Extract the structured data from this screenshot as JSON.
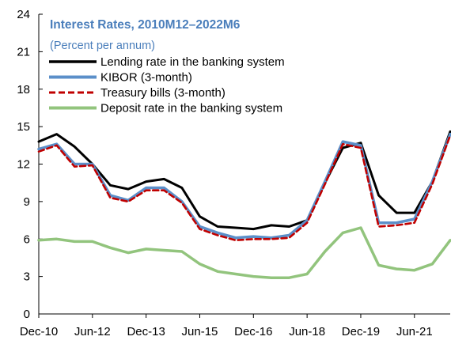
{
  "chart_data": {
    "type": "line",
    "title": "Interest Rates, 2010M12–2022M6",
    "subtitle": "(Percent per annum)",
    "xlabel": "",
    "ylabel": "",
    "x_start": "Dec-10",
    "x_end": "Jun-22",
    "ylim": [
      0,
      24
    ],
    "yticks": [
      0,
      3,
      6,
      9,
      12,
      15,
      18,
      21,
      24
    ],
    "xtick_labels": [
      "Dec-10",
      "Jun-12",
      "Dec-13",
      "Jun-15",
      "Dec-16",
      "Jun-18",
      "Dec-19",
      "Jun-21"
    ],
    "grid": false,
    "legend_position": "top-left",
    "colors": {
      "title": "#4A7EBB",
      "lending": "#000000",
      "kibor": "#5B8FC9",
      "tbills": "#C00000",
      "deposit": "#92C47D"
    },
    "series": [
      {
        "name": "Lending rate in the banking system",
        "x": [
          "Dec-10",
          "Jun-11",
          "Dec-11",
          "Jun-12",
          "Dec-12",
          "Jun-13",
          "Dec-13",
          "Jun-14",
          "Dec-14",
          "Jun-15",
          "Dec-15",
          "Jun-16",
          "Dec-16",
          "Jun-17",
          "Dec-17",
          "Jun-18",
          "Dec-18",
          "Jun-19",
          "Dec-19",
          "Jun-20",
          "Dec-20",
          "Jun-21",
          "Dec-21",
          "Jun-22"
        ],
        "values": [
          13.8,
          14.4,
          13.4,
          12.0,
          10.3,
          10.0,
          10.6,
          10.8,
          10.1,
          7.8,
          7.0,
          6.9,
          6.8,
          7.1,
          7.0,
          7.5,
          10.5,
          13.3,
          13.7,
          9.5,
          8.1,
          8.1,
          10.6,
          14.6
        ]
      },
      {
        "name": "KIBOR (3-month)",
        "x": [
          "Dec-10",
          "Jun-11",
          "Dec-11",
          "Jun-12",
          "Dec-12",
          "Jun-13",
          "Dec-13",
          "Jun-14",
          "Dec-14",
          "Jun-15",
          "Dec-15",
          "Jun-16",
          "Dec-16",
          "Jun-17",
          "Dec-17",
          "Jun-18",
          "Dec-18",
          "Jun-19",
          "Dec-19",
          "Jun-20",
          "Dec-20",
          "Jun-21",
          "Dec-21",
          "Jun-22"
        ],
        "values": [
          13.2,
          13.6,
          12.0,
          12.0,
          9.5,
          9.1,
          10.1,
          10.1,
          9.0,
          7.0,
          6.5,
          6.1,
          6.2,
          6.1,
          6.3,
          7.5,
          10.6,
          13.8,
          13.5,
          7.3,
          7.3,
          7.6,
          10.6,
          14.4
        ]
      },
      {
        "name": "Treasury bills (3-month)",
        "x": [
          "Dec-10",
          "Jun-11",
          "Dec-11",
          "Jun-12",
          "Dec-12",
          "Jun-13",
          "Dec-13",
          "Jun-14",
          "Dec-14",
          "Jun-15",
          "Dec-15",
          "Jun-16",
          "Dec-16",
          "Jun-17",
          "Dec-17",
          "Jun-18",
          "Dec-18",
          "Jun-19",
          "Dec-19",
          "Jun-20",
          "Dec-20",
          "Jun-21",
          "Dec-21",
          "Jun-22"
        ],
        "values": [
          13.0,
          13.5,
          11.8,
          11.9,
          9.3,
          9.0,
          9.9,
          9.9,
          8.9,
          6.8,
          6.3,
          5.9,
          6.0,
          6.0,
          6.1,
          7.3,
          10.4,
          13.6,
          13.3,
          7.0,
          7.1,
          7.3,
          10.4,
          14.3
        ]
      },
      {
        "name": "Deposit rate in the banking system",
        "x": [
          "Dec-10",
          "Jun-11",
          "Dec-11",
          "Jun-12",
          "Dec-12",
          "Jun-13",
          "Dec-13",
          "Jun-14",
          "Dec-14",
          "Jun-15",
          "Dec-15",
          "Jun-16",
          "Dec-16",
          "Jun-17",
          "Dec-17",
          "Jun-18",
          "Dec-18",
          "Jun-19",
          "Dec-19",
          "Jun-20",
          "Dec-20",
          "Jun-21",
          "Dec-21",
          "Jun-22"
        ],
        "values": [
          5.9,
          6.0,
          5.8,
          5.8,
          5.3,
          4.9,
          5.2,
          5.1,
          5.0,
          4.0,
          3.4,
          3.2,
          3.0,
          2.9,
          2.9,
          3.2,
          5.0,
          6.5,
          6.9,
          3.9,
          3.6,
          3.5,
          4.0,
          5.9
        ]
      }
    ]
  }
}
